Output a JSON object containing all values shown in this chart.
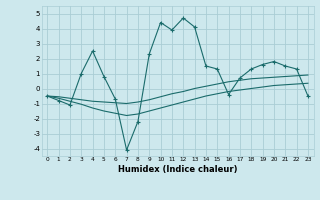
{
  "xlabel": "Humidex (Indice chaleur)",
  "ylabel": "",
  "xlim": [
    -0.5,
    23.5
  ],
  "ylim": [
    -4.5,
    5.5
  ],
  "xticks": [
    0,
    1,
    2,
    3,
    4,
    5,
    6,
    7,
    8,
    9,
    10,
    11,
    12,
    13,
    14,
    15,
    16,
    17,
    18,
    19,
    20,
    21,
    22,
    23
  ],
  "yticks": [
    -4,
    -3,
    -2,
    -1,
    0,
    1,
    2,
    3,
    4,
    5
  ],
  "bg_color": "#cde8ed",
  "grid_color": "#aacdd5",
  "line_color": "#1a6b6b",
  "line1_x": [
    0,
    1,
    2,
    3,
    4,
    5,
    6,
    7,
    8,
    9,
    10,
    11,
    12,
    13,
    14,
    15,
    16,
    17,
    18,
    19,
    20,
    21,
    22,
    23
  ],
  "line1_y": [
    -0.5,
    -0.55,
    -0.65,
    -0.75,
    -0.85,
    -0.9,
    -0.95,
    -1.0,
    -0.9,
    -0.75,
    -0.55,
    -0.35,
    -0.2,
    -0.0,
    0.15,
    0.3,
    0.45,
    0.55,
    0.65,
    0.7,
    0.75,
    0.8,
    0.85,
    0.9
  ],
  "line2_x": [
    0,
    1,
    2,
    3,
    4,
    5,
    6,
    7,
    8,
    9,
    10,
    11,
    12,
    13,
    14,
    15,
    16,
    17,
    18,
    19,
    20,
    21,
    22,
    23
  ],
  "line2_y": [
    -0.5,
    -0.65,
    -0.85,
    -1.05,
    -1.3,
    -1.5,
    -1.65,
    -1.8,
    -1.7,
    -1.5,
    -1.3,
    -1.1,
    -0.9,
    -0.7,
    -0.5,
    -0.35,
    -0.2,
    -0.1,
    0.0,
    0.1,
    0.2,
    0.25,
    0.3,
    0.35
  ],
  "line3_x": [
    0,
    1,
    2,
    3,
    4,
    5,
    6,
    7,
    8,
    9,
    10,
    11,
    12,
    13,
    14,
    15,
    16,
    17,
    18,
    19,
    20,
    21,
    22,
    23
  ],
  "line3_y": [
    -0.5,
    -0.8,
    -1.1,
    1.0,
    2.5,
    0.8,
    -0.7,
    -4.1,
    -2.2,
    2.3,
    4.4,
    3.9,
    4.7,
    4.1,
    1.5,
    1.3,
    -0.4,
    0.7,
    1.3,
    1.6,
    1.8,
    1.5,
    1.3,
    -0.5
  ]
}
